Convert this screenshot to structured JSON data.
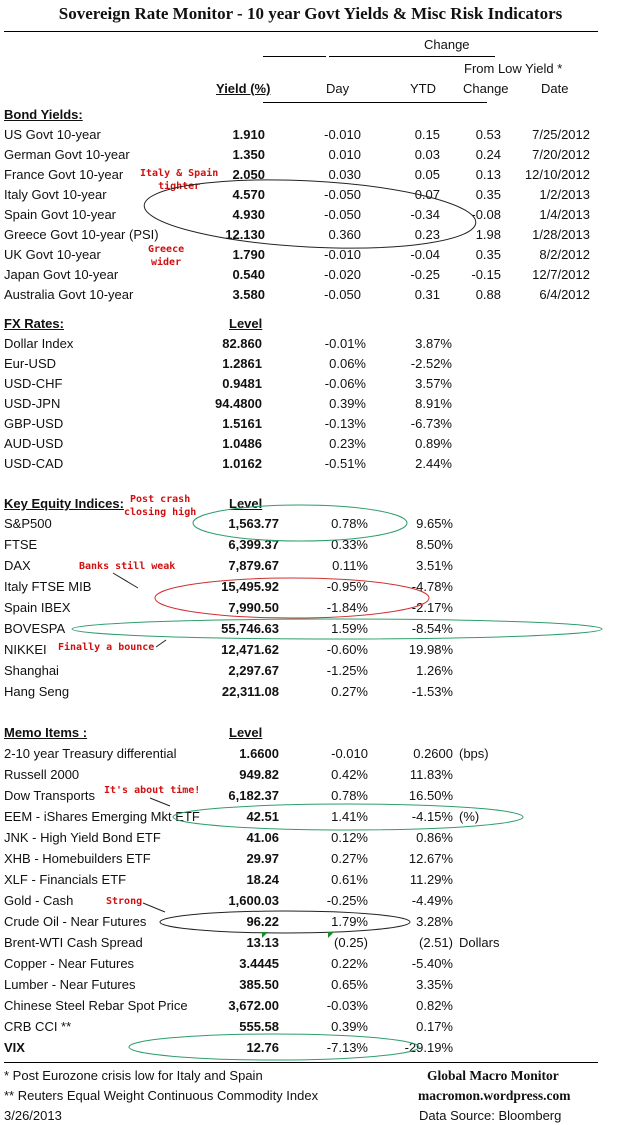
{
  "title": "Sovereign Rate Monitor - 10 year Govt Yields & Misc Risk Indicators",
  "headers": {
    "change": "Change",
    "from_low_yield": "From Low Yield  *",
    "yield": "Yield (%)",
    "day": "Day",
    "ytd": "YTD",
    "low_change": "Change",
    "low_date": "Date",
    "level": "Level"
  },
  "bonds": {
    "heading": "Bond Yields:",
    "rows": [
      {
        "name": "US Govt 10-year",
        "yield": "1.910",
        "day": "-0.010",
        "ytd": "0.15",
        "low_change": "0.53",
        "low_date": "7/25/2012"
      },
      {
        "name": "German Govt 10-year",
        "yield": "1.350",
        "day": "0.010",
        "ytd": "0.03",
        "low_change": "0.24",
        "low_date": "7/20/2012"
      },
      {
        "name": "France Govt 10-year",
        "yield": "2.050",
        "day": "0.030",
        "ytd": "0.05",
        "low_change": "0.13",
        "low_date": "12/10/2012"
      },
      {
        "name": "Italy Govt 10-year",
        "yield": "4.570",
        "day": "-0.050",
        "ytd": "0.07",
        "low_change": "0.35",
        "low_date": "1/2/2013"
      },
      {
        "name": "Spain Govt 10-year",
        "yield": "4.930",
        "day": "-0.050",
        "ytd": "-0.34",
        "low_change": "-0.08",
        "low_date": "1/4/2013"
      },
      {
        "name": "Greece Govt 10-year (PSI)",
        "yield": "12.130",
        "day": "0.360",
        "ytd": "0.23",
        "low_change": "1.98",
        "low_date": "1/28/2013"
      },
      {
        "name": "UK Govt 10-year",
        "yield": "1.790",
        "day": "-0.010",
        "ytd": "-0.04",
        "low_change": "0.35",
        "low_date": "8/2/2012"
      },
      {
        "name": "Japan Govt 10-year",
        "yield": "0.540",
        "day": "-0.020",
        "ytd": "-0.25",
        "low_change": "-0.15",
        "low_date": "12/7/2012"
      },
      {
        "name": "Australia Govt 10-year",
        "yield": "3.580",
        "day": "-0.050",
        "ytd": "0.31",
        "low_change": "0.88",
        "low_date": "6/4/2012"
      }
    ]
  },
  "fx": {
    "heading": "FX Rates:",
    "rows": [
      {
        "name": "Dollar Index",
        "level": "82.860",
        "day": "-0.01%",
        "ytd": "3.87%"
      },
      {
        "name": "Eur-USD",
        "level": "1.2861",
        "day": "0.06%",
        "ytd": "-2.52%"
      },
      {
        "name": "USD-CHF",
        "level": "0.9481",
        "day": "-0.06%",
        "ytd": "3.57%"
      },
      {
        "name": "USD-JPN",
        "level": "94.4800",
        "day": "0.39%",
        "ytd": "8.91%"
      },
      {
        "name": "GBP-USD",
        "level": "1.5161",
        "day": "-0.13%",
        "ytd": "-6.73%"
      },
      {
        "name": "AUD-USD",
        "level": "1.0486",
        "day": "0.23%",
        "ytd": "0.89%"
      },
      {
        "name": "USD-CAD",
        "level": "1.0162",
        "day": "-0.51%",
        "ytd": "2.44%"
      }
    ]
  },
  "equities": {
    "heading": "Key Equity Indices:",
    "rows": [
      {
        "name": "S&P500",
        "level": "1,563.77",
        "day": "0.78%",
        "ytd": "9.65%"
      },
      {
        "name": "FTSE",
        "level": "6,399.37",
        "day": "0.33%",
        "ytd": "8.50%"
      },
      {
        "name": "DAX",
        "level": "7,879.67",
        "day": "0.11%",
        "ytd": "3.51%"
      },
      {
        "name": "Italy FTSE MIB",
        "level": "15,495.92",
        "day": "-0.95%",
        "ytd": "-4.78%"
      },
      {
        "name": "Spain IBEX",
        "level": "7,990.50",
        "day": "-1.84%",
        "ytd": "-2.17%"
      },
      {
        "name": "BOVESPA",
        "level": "55,746.63",
        "day": "1.59%",
        "ytd": "-8.54%"
      },
      {
        "name": "NIKKEI",
        "level": "12,471.62",
        "day": "-0.60%",
        "ytd": "19.98%"
      },
      {
        "name": "Shanghai",
        "level": "2,297.67",
        "day": "-1.25%",
        "ytd": "1.26%"
      },
      {
        "name": "Hang Seng",
        "level": "22,311.08",
        "day": "0.27%",
        "ytd": "-1.53%"
      }
    ]
  },
  "memo": {
    "heading": "Memo Items :",
    "rows": [
      {
        "name": "2-10 year Treasury differential",
        "level": "1.6600",
        "day": "-0.010",
        "ytd": "0.2600",
        "unit": "(bps)"
      },
      {
        "name": "Russell 2000",
        "level": "949.82",
        "day": "0.42%",
        "ytd": "11.83%",
        "unit": ""
      },
      {
        "name": "Dow Transports",
        "level": "6,182.37",
        "day": "0.78%",
        "ytd": "16.50%",
        "unit": ""
      },
      {
        "name": "EEM - iShares Emerging Mkt ETF",
        "level": "42.51",
        "day": "1.41%",
        "ytd": "-4.15%",
        "unit": "(%)"
      },
      {
        "name": "JNK - High Yield Bond ETF",
        "level": "41.06",
        "day": "0.12%",
        "ytd": "0.86%",
        "unit": ""
      },
      {
        "name": "XHB - Homebuilders ETF",
        "level": "29.97",
        "day": "0.27%",
        "ytd": "12.67%",
        "unit": ""
      },
      {
        "name": "XLF - Financials ETF",
        "level": "18.24",
        "day": "0.61%",
        "ytd": "11.29%",
        "unit": ""
      },
      {
        "name": "Gold - Cash",
        "level": "1,600.03",
        "day": "-0.25%",
        "ytd": "-4.49%",
        "unit": ""
      },
      {
        "name": "Crude Oil - Near Futures",
        "level": "96.22",
        "day": "1.79%",
        "ytd": "3.28%",
        "unit": ""
      },
      {
        "name": "Brent-WTI Cash Spread",
        "level": "13.13",
        "day": "(0.25)",
        "ytd": "(2.51)",
        "unit": "Dollars"
      },
      {
        "name": "Copper - Near Futures",
        "level": "3.4445",
        "day": "0.22%",
        "ytd": "-5.40%",
        "unit": ""
      },
      {
        "name": "Lumber - Near Futures",
        "level": "385.50",
        "day": "0.65%",
        "ytd": "3.35%",
        "unit": ""
      },
      {
        "name": "Chinese Steel Rebar Spot Price",
        "level": "3,672.00",
        "day": "-0.03%",
        "ytd": "0.82%",
        "unit": ""
      },
      {
        "name": "CRB CCI **",
        "level": "555.58",
        "day": "0.39%",
        "ytd": "0.17%",
        "unit": ""
      },
      {
        "name": "VIX",
        "level": "12.76",
        "day": "-7.13%",
        "ytd": "-29.19%",
        "unit": ""
      }
    ]
  },
  "annotations": {
    "italy_spain": "Italy & Spain\ntighter",
    "greece": "Greece\nwider",
    "post_crash": "Post crash\nclosing high",
    "banks": "Banks still weak",
    "bounce": "Finally a bounce",
    "about_time": "It's about time!",
    "strong": "Strong"
  },
  "footer": {
    "note1": "*  Post Eurozone crisis low for Italy and Spain",
    "note2": "** Reuters Equal Weight Continuous Commodity Index",
    "date": "3/26/2013",
    "brand": "Global Macro Monitor",
    "site": "macromon.wordpress.com",
    "source": "Data Source:  Bloomberg"
  },
  "colors": {
    "annotation_text": "#d01010",
    "ellipse_green": "#2e9e6a",
    "ellipse_red": "#d03030",
    "ellipse_black": "#222222"
  }
}
